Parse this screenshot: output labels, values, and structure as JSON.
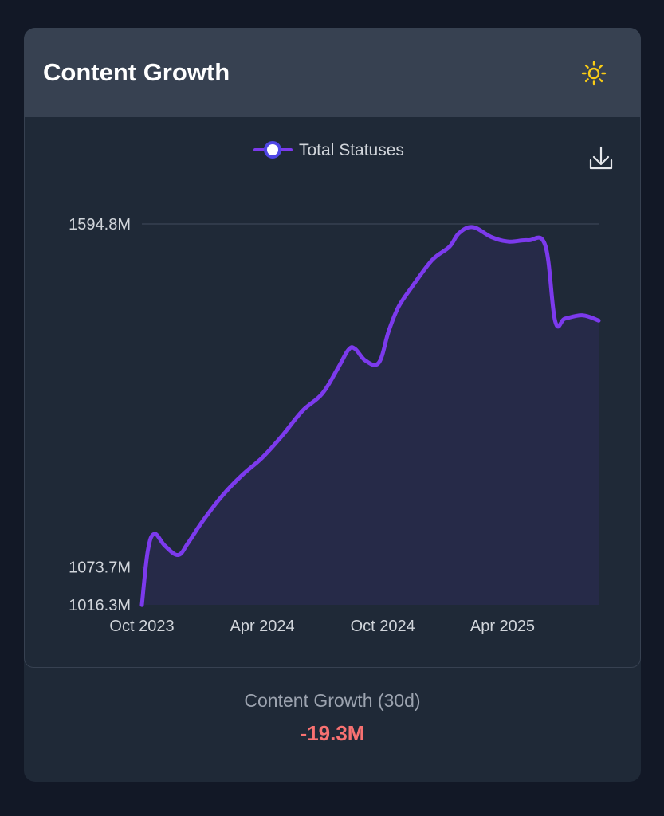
{
  "card": {
    "title": "Content Growth",
    "theme_icon": "sun-icon",
    "download_icon": "download-icon"
  },
  "metric": {
    "label": "Content Growth (30d)",
    "value": "-19.3M",
    "value_color": "#f87171"
  },
  "colors": {
    "line": "#7c3aed",
    "area": "#262a48",
    "grid": "#374151",
    "tick_text": "#d1d5db",
    "legend_marker_fill": "#ffffff",
    "legend_marker_ring": "#4f46e5",
    "icon": "#e5e7eb",
    "sun": "#facc15"
  },
  "chart_data": {
    "type": "area",
    "title": "",
    "xlabel": "",
    "ylabel": "",
    "legend": "top-center",
    "grid": true,
    "series": [
      {
        "name": "Total Statuses",
        "x": [
          "2023-10-01",
          "2023-10-10",
          "2023-10-20",
          "2023-11-05",
          "2023-11-25",
          "2023-12-10",
          "2024-01-01",
          "2024-02-01",
          "2024-03-01",
          "2024-04-01",
          "2024-05-01",
          "2024-06-01",
          "2024-07-01",
          "2024-07-25",
          "2024-08-10",
          "2024-08-20",
          "2024-09-05",
          "2024-09-25",
          "2024-10-10",
          "2024-10-25",
          "2024-11-15",
          "2024-12-15",
          "2025-01-10",
          "2025-01-25",
          "2025-02-15",
          "2025-03-15",
          "2025-04-10",
          "2025-05-10",
          "2025-06-05",
          "2025-06-20",
          "2025-07-05",
          "2025-08-01",
          "2025-08-25"
        ],
        "values": [
          1016,
          1098,
          1124,
          1106,
          1092,
          1110,
          1143,
          1183,
          1213,
          1240,
          1273,
          1311,
          1337,
          1376,
          1404,
          1405,
          1387,
          1384,
          1432,
          1469,
          1500,
          1540,
          1560,
          1581,
          1590,
          1575,
          1568,
          1570,
          1562,
          1447,
          1451,
          1456,
          1448
        ]
      }
    ],
    "x_ticks": [
      "Oct 2023",
      "Apr 2024",
      "Oct 2024",
      "Apr 2025"
    ],
    "x_tick_dates": [
      "2023-10-01",
      "2024-04-01",
      "2024-10-01",
      "2025-04-01"
    ],
    "x_range": [
      "2023-10-01",
      "2025-08-25"
    ],
    "y_ticks": [
      "1016.3M",
      "1073.7M",
      "1594.8M"
    ],
    "y_tick_values": [
      1016.3,
      1073.7,
      1594.8
    ],
    "ylim": [
      1016.3,
      1594.8
    ],
    "unit": "M"
  }
}
